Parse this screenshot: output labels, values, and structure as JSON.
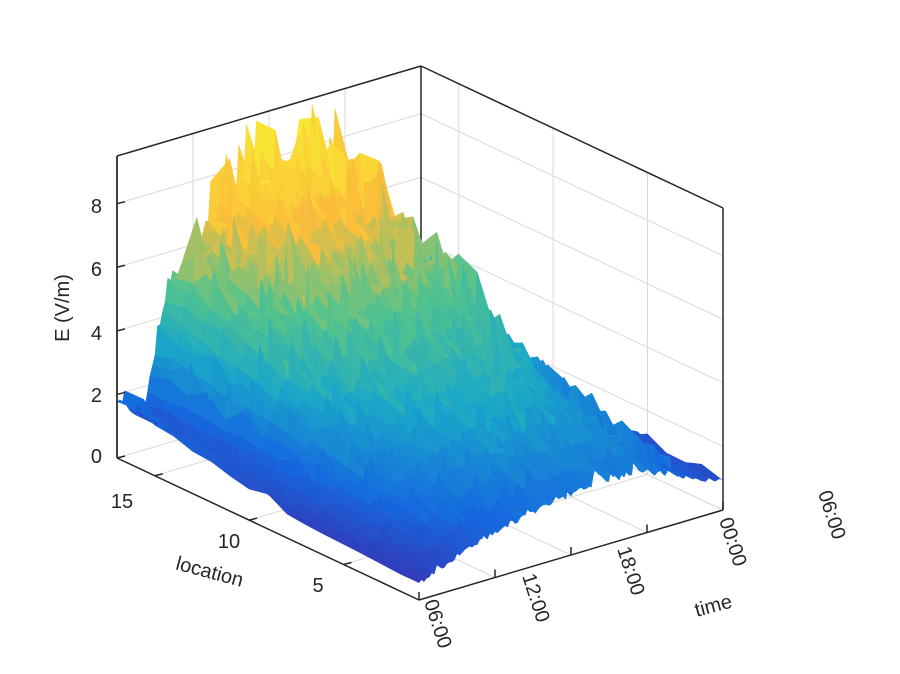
{
  "chart_data": {
    "type": "surface",
    "title": "",
    "xlabel": "time",
    "ylabel": "location",
    "zlabel": "E (V/m)",
    "x_ticks": [
      "06:00",
      "12:00",
      "18:00",
      "00:00",
      "06:00"
    ],
    "y_ticks": [
      "5",
      "10",
      "15"
    ],
    "z_ticks": [
      "0",
      "2",
      "4",
      "6",
      "8"
    ],
    "xlim": [
      "06:00",
      "06:00 (+1 day)"
    ],
    "ylim": [
      1,
      17
    ],
    "zlim": [
      0,
      9.5
    ],
    "grid": true,
    "colormap": [
      "#3e26a8",
      "#1569e0",
      "#1aa8c8",
      "#54c38c",
      "#fbbd3a",
      "#f9e634"
    ],
    "surface_profiles": {
      "location_1": {
        "time_hours": [
          0,
          2,
          4,
          6,
          8,
          10,
          12,
          14,
          16,
          18,
          20,
          22,
          24
        ],
        "E": [
          0.5,
          0.8,
          1.2,
          1.4,
          1.6,
          1.8,
          1.9,
          2.0,
          2.0,
          1.9,
          1.6,
          1.2,
          0.9
        ]
      },
      "location_8": {
        "time_hours": [
          0,
          2,
          4,
          6,
          8,
          10,
          12,
          14,
          16,
          18,
          20,
          22,
          24
        ],
        "E": [
          0.7,
          1.5,
          2.6,
          3.2,
          3.6,
          3.9,
          4.0,
          4.0,
          3.9,
          3.6,
          2.6,
          1.4,
          1.0
        ]
      },
      "location_16": {
        "time_hours": [
          0,
          2,
          4,
          6,
          8,
          10,
          12,
          14,
          16,
          18,
          20,
          22,
          24
        ],
        "E": [
          1.8,
          1.0,
          5.0,
          6.0,
          6.8,
          7.4,
          7.5,
          7.6,
          7.2,
          6.6,
          2.4,
          2.1,
          2.1
        ]
      }
    }
  },
  "colors": {
    "axis": "#262626",
    "grid": "#d9d9d9",
    "background": "#ffffff"
  }
}
